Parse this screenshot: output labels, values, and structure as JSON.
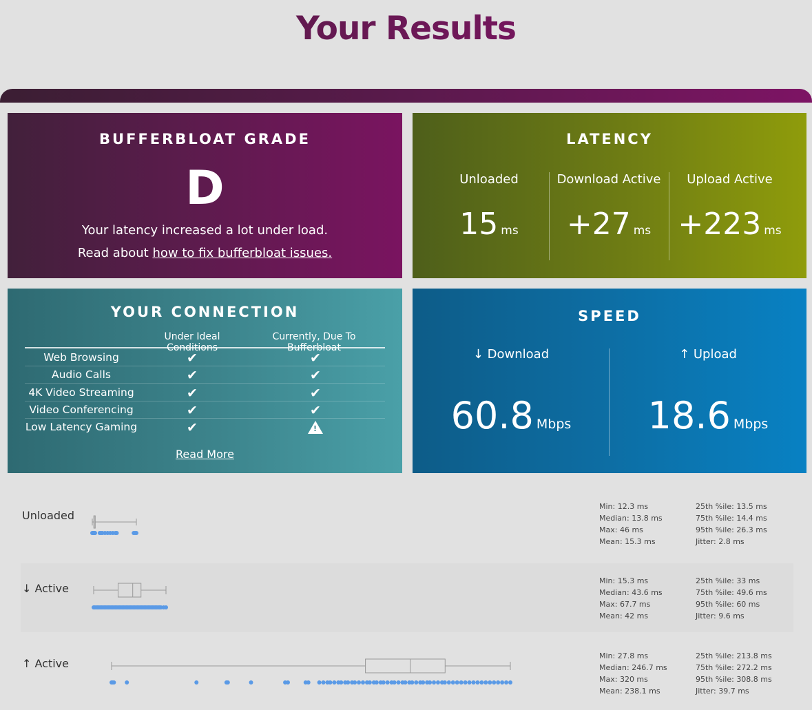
{
  "page": {
    "title": "Your Results"
  },
  "grade": {
    "heading": "BUFFERBLOAT GRADE",
    "letter": "D",
    "description": "Your latency increased a lot under load.",
    "read_prefix": "Read about ",
    "read_link": "how to fix bufferbloat issues."
  },
  "latency": {
    "heading": "LATENCY",
    "columns": [
      {
        "label": "Unloaded",
        "value": "15",
        "unit": "ms"
      },
      {
        "label": "Download Active",
        "value": "+27",
        "unit": "ms"
      },
      {
        "label": "Upload Active",
        "value": "+223",
        "unit": "ms"
      }
    ]
  },
  "connection": {
    "heading": "YOUR CONNECTION",
    "col_ideal": "Under Ideal Conditions",
    "col_current": "Currently, Due To Bufferbloat",
    "rows": [
      {
        "name": "Web Browsing",
        "ideal": "check",
        "current": "check"
      },
      {
        "name": "Audio Calls",
        "ideal": "check",
        "current": "check"
      },
      {
        "name": "4K Video Streaming",
        "ideal": "check",
        "current": "check"
      },
      {
        "name": "Video Conferencing",
        "ideal": "check",
        "current": "check"
      },
      {
        "name": "Low Latency Gaming",
        "ideal": "check",
        "current": "warning"
      }
    ],
    "read_more": "Read More"
  },
  "speed": {
    "heading": "SPEED",
    "download": {
      "label": "↓ Download",
      "value": "60.8",
      "unit": "Mbps"
    },
    "upload": {
      "label": "↑ Upload",
      "value": "18.6",
      "unit": "Mbps"
    }
  },
  "distributions": [
    {
      "label": "Unloaded",
      "min": 12.3,
      "q1": 13.5,
      "median": 13.8,
      "q3": 14.4,
      "max": 46,
      "points": [
        12.3,
        12.5,
        12.8,
        13.0,
        13.2,
        13.5,
        13.8,
        14.0,
        14.2,
        14.4,
        18,
        19,
        20,
        22,
        24,
        26,
        28,
        30,
        31,
        44,
        45,
        46
      ],
      "stats_left": [
        "Min: 12.3 ms",
        "Median: 13.8 ms",
        "Max: 46 ms",
        "Mean: 15.3 ms"
      ],
      "stats_right": [
        "25th %ile: 13.5 ms",
        "75th %ile: 14.4 ms",
        "95th %ile: 26.3 ms",
        "Jitter: 2.8 ms"
      ]
    },
    {
      "label": "↓ Active",
      "min": 15.3,
      "q1": 33,
      "median": 43.6,
      "q3": 49.6,
      "max": 67.7,
      "points": [
        15.3,
        16,
        17,
        18,
        19,
        20,
        21,
        22,
        23,
        24,
        25,
        26,
        27,
        28,
        29,
        30,
        31,
        32,
        33,
        34,
        35,
        36,
        37,
        38,
        39,
        40,
        41,
        42,
        43,
        44,
        45,
        46,
        47,
        48,
        49,
        50,
        51,
        52,
        53,
        54,
        55,
        56,
        57,
        58,
        59,
        60,
        61,
        62,
        63,
        64,
        66,
        67.7
      ],
      "stats_left": [
        "Min: 15.3 ms",
        "Median: 43.6 ms",
        "Max: 67.7 ms",
        "Mean: 42 ms"
      ],
      "stats_right": [
        "25th %ile: 33 ms",
        "75th %ile: 49.6 ms",
        "95th %ile: 60 ms",
        "Jitter: 9.6 ms"
      ]
    },
    {
      "label": "↑ Active",
      "min": 27.8,
      "q1": 213.8,
      "median": 246.7,
      "q3": 272.2,
      "max": 320,
      "points": [
        27.8,
        28.5,
        29.5,
        39,
        90,
        112,
        113,
        130,
        155,
        157,
        170,
        172,
        180,
        183,
        186,
        188,
        191,
        194,
        196,
        199,
        201,
        204,
        206,
        209,
        212,
        215,
        217,
        220,
        222,
        225,
        227,
        230,
        233,
        235,
        238,
        241,
        243,
        246,
        248,
        251,
        254,
        256,
        259,
        261,
        264,
        267,
        270,
        272,
        275,
        278,
        281,
        284,
        287,
        290,
        293,
        296,
        299,
        302,
        305,
        308,
        311,
        314,
        317,
        320
      ],
      "stats_left": [
        "Min: 27.8 ms",
        "Median: 246.7 ms",
        "Max: 320 ms",
        "Mean: 238.1 ms"
      ],
      "stats_right": [
        "25th %ile: 213.8 ms",
        "75th %ile: 272.2 ms",
        "95th %ile: 308.8 ms",
        "Jitter: 39.7 ms"
      ]
    }
  ],
  "colors": {
    "dot": "#5a9ae6",
    "box": "#999999"
  }
}
